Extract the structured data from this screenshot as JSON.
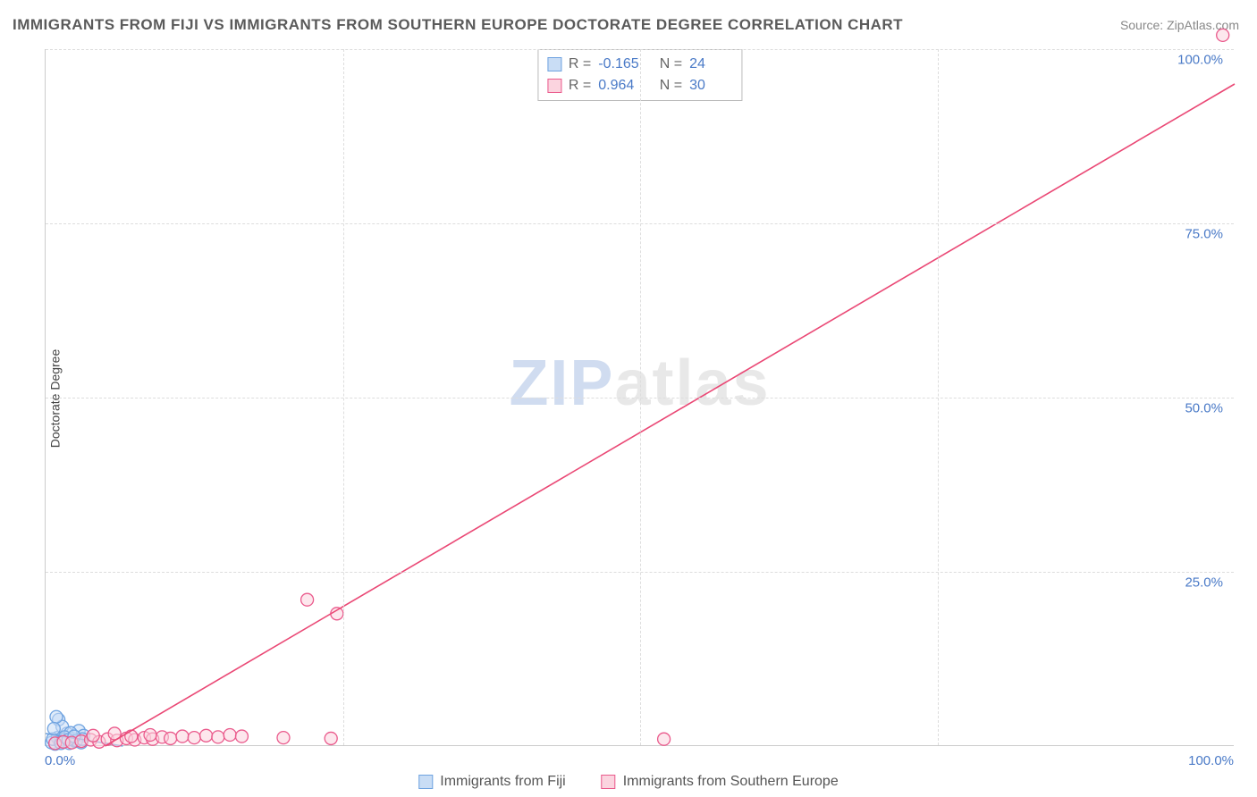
{
  "title": "IMMIGRANTS FROM FIJI VS IMMIGRANTS FROM SOUTHERN EUROPE DOCTORATE DEGREE CORRELATION CHART",
  "source": "Source: ZipAtlas.com",
  "y_axis_label": "Doctorate Degree",
  "watermark": {
    "zip": "ZIP",
    "atlas": "atlas"
  },
  "chart": {
    "type": "scatter",
    "xlim": [
      0,
      100
    ],
    "ylim": [
      0,
      100
    ],
    "x_ticks": [
      0,
      25,
      50,
      75,
      100
    ],
    "y_ticks": [
      25,
      50,
      75,
      100
    ],
    "x_tick_labels": [
      "0.0%",
      "",
      "",
      "",
      "100.0%"
    ],
    "y_tick_labels": [
      "25.0%",
      "50.0%",
      "75.0%",
      "100.0%"
    ],
    "grid_color": "#dddddd",
    "axis_color": "#cccccc",
    "background_color": "#ffffff",
    "marker_radius": 7,
    "marker_stroke_width": 1.3,
    "trend_line_width": 1.6,
    "series": [
      {
        "id": "fiji",
        "label": "Immigrants from Fiji",
        "fill": "#c9ddf5",
        "stroke": "#6fa3e0",
        "r_value": "-0.165",
        "n_value": "24",
        "trend": {
          "x1": 0,
          "y1": 1.8,
          "x2": 6.5,
          "y2": 0,
          "color": "#6fa3e0"
        },
        "points": [
          [
            0.5,
            0.5
          ],
          [
            0.8,
            0.3
          ],
          [
            1.0,
            1.2
          ],
          [
            1.2,
            0.6
          ],
          [
            1.5,
            0.9
          ],
          [
            1.8,
            1.8
          ],
          [
            2.0,
            0.4
          ],
          [
            2.3,
            1.1
          ],
          [
            2.5,
            0.7
          ],
          [
            2.8,
            2.2
          ],
          [
            3.0,
            0.5
          ],
          [
            3.2,
            1.5
          ],
          [
            1.1,
            3.8
          ],
          [
            1.4,
            2.8
          ],
          [
            0.9,
            4.2
          ],
          [
            2.1,
            1.9
          ],
          [
            2.6,
            0.8
          ],
          [
            3.1,
            1.0
          ],
          [
            0.6,
            1.0
          ],
          [
            0.7,
            2.5
          ],
          [
            1.3,
            0.4
          ],
          [
            1.6,
            1.3
          ],
          [
            1.9,
            0.9
          ],
          [
            2.4,
            1.4
          ]
        ]
      },
      {
        "id": "southern_europe",
        "label": "Immigrants from Southern Europe",
        "fill": "#fbd4df",
        "stroke": "#ea5a8c",
        "r_value": "0.964",
        "n_value": "30",
        "trend": {
          "x1": 5,
          "y1": 0,
          "x2": 100,
          "y2": 95,
          "color": "#ea4875"
        },
        "points": [
          [
            0.8,
            0.4
          ],
          [
            1.5,
            0.6
          ],
          [
            2.2,
            0.5
          ],
          [
            3.0,
            0.7
          ],
          [
            3.8,
            0.9
          ],
          [
            4.5,
            0.6
          ],
          [
            5.2,
            1.0
          ],
          [
            6.0,
            0.8
          ],
          [
            6.8,
            1.1
          ],
          [
            7.5,
            0.9
          ],
          [
            8.3,
            1.2
          ],
          [
            9.0,
            1.0
          ],
          [
            9.8,
            1.3
          ],
          [
            10.5,
            1.1
          ],
          [
            11.5,
            1.4
          ],
          [
            12.5,
            1.2
          ],
          [
            13.5,
            1.5
          ],
          [
            14.5,
            1.3
          ],
          [
            15.5,
            1.6
          ],
          [
            16.5,
            1.4
          ],
          [
            20.0,
            1.2
          ],
          [
            22.0,
            21.0
          ],
          [
            24.0,
            1.1
          ],
          [
            24.5,
            19.0
          ],
          [
            52.0,
            1.0
          ],
          [
            99.0,
            102.0
          ],
          [
            4.0,
            1.5
          ],
          [
            5.8,
            1.8
          ],
          [
            7.2,
            1.4
          ],
          [
            8.8,
            1.6
          ]
        ]
      }
    ]
  },
  "stats_box": {
    "r_label": "R =",
    "n_label": "N ="
  },
  "colors": {
    "text_title": "#5a5a5a",
    "text_source": "#888888",
    "text_axis_val": "#4a7ac7",
    "text_legend": "#555555"
  }
}
